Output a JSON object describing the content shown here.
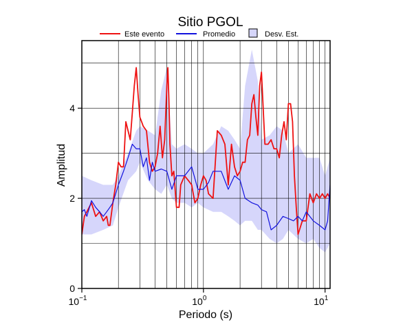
{
  "chart_data": {
    "type": "line",
    "title": "Sitio PGOL",
    "xlabel": "Periodo (s)",
    "ylabel": "Amplitud",
    "x_scale": "log",
    "xlim": [
      0.1,
      11
    ],
    "ylim": [
      0,
      5.5
    ],
    "x_ticks": [
      {
        "value": 0.1,
        "base": "10",
        "exp": "−1"
      },
      {
        "value": 1,
        "base": "10",
        "exp": "0"
      },
      {
        "value": 10,
        "base": "10",
        "exp": "1"
      }
    ],
    "y_ticks": [
      {
        "value": 0,
        "label": "0"
      },
      {
        "value": 2,
        "label": "2"
      },
      {
        "value": 4,
        "label": "4"
      }
    ],
    "grid": "vertical lines at log decades and intermediates, horizontal lines at 1, 2, 3, 4, 5",
    "legend": {
      "placement": "top",
      "items": [
        {
          "label": "Este evento",
          "kind": "line",
          "color": "#ee1111"
        },
        {
          "label": "Promedio",
          "kind": "line",
          "color": "#1111dd"
        },
        {
          "label": "Desv. Est.",
          "kind": "band",
          "color": "#d6d6fb"
        }
      ]
    },
    "band": {
      "name": "Desv. Est.",
      "x": [
        0.1,
        0.12,
        0.15,
        0.18,
        0.2,
        0.24,
        0.28,
        0.3,
        0.35,
        0.4,
        0.45,
        0.5,
        0.55,
        0.6,
        0.7,
        0.8,
        0.9,
        1.0,
        1.2,
        1.4,
        1.6,
        1.8,
        2.0,
        2.2,
        2.5,
        2.8,
        3.0,
        3.5,
        4.0,
        4.5,
        5.0,
        6.0,
        7.0,
        8.0,
        9.0,
        10.0,
        11.0
      ],
      "upper": [
        2.5,
        2.4,
        2.3,
        2.3,
        2.5,
        3.0,
        3.5,
        3.6,
        3.5,
        3.4,
        4.4,
        4.9,
        3.2,
        3.1,
        3.2,
        3.1,
        3.0,
        3.0,
        3.2,
        3.6,
        3.5,
        3.3,
        3.1,
        4.5,
        5.3,
        4.6,
        3.3,
        3.4,
        3.6,
        3.5,
        3.0,
        3.2,
        2.9,
        2.9,
        2.9,
        2.5,
        2.9
      ],
      "lower": [
        1.2,
        1.2,
        1.3,
        1.4,
        1.8,
        2.4,
        2.6,
        2.8,
        2.4,
        2.2,
        2.1,
        2.3,
        2.0,
        1.9,
        1.9,
        1.8,
        1.9,
        1.8,
        1.7,
        1.7,
        1.6,
        1.5,
        1.4,
        1.5,
        1.5,
        1.3,
        1.3,
        1.1,
        1.0,
        1.1,
        1.3,
        1.1,
        1.0,
        1.1,
        0.9,
        0.8,
        1.0
      ]
    },
    "series": [
      {
        "name": "Este evento",
        "color": "#ee1111",
        "x": [
          0.1,
          0.105,
          0.11,
          0.12,
          0.13,
          0.14,
          0.15,
          0.16,
          0.165,
          0.17,
          0.18,
          0.19,
          0.2,
          0.21,
          0.22,
          0.23,
          0.24,
          0.25,
          0.26,
          0.27,
          0.28,
          0.29,
          0.3,
          0.31,
          0.32,
          0.34,
          0.36,
          0.38,
          0.4,
          0.42,
          0.44,
          0.46,
          0.48,
          0.5,
          0.51,
          0.52,
          0.53,
          0.55,
          0.57,
          0.6,
          0.63,
          0.65,
          0.7,
          0.75,
          0.8,
          0.85,
          0.9,
          0.95,
          1.0,
          1.05,
          1.1,
          1.2,
          1.3,
          1.4,
          1.5,
          1.6,
          1.7,
          1.8,
          1.9,
          2.0,
          2.1,
          2.2,
          2.3,
          2.4,
          2.5,
          2.6,
          2.7,
          2.8,
          2.9,
          3.0,
          3.1,
          3.2,
          3.4,
          3.6,
          3.8,
          4.0,
          4.2,
          4.4,
          4.6,
          4.8,
          5.0,
          5.2,
          5.4,
          5.6,
          5.8,
          6.0,
          6.5,
          7.0,
          7.5,
          8.0,
          8.5,
          9.0,
          9.5,
          10.0,
          10.5,
          11.0
        ],
        "y": [
          1.2,
          1.6,
          1.7,
          1.9,
          1.6,
          1.7,
          1.5,
          1.6,
          1.4,
          1.4,
          1.9,
          2.3,
          2.8,
          2.7,
          2.7,
          3.7,
          3.5,
          3.3,
          3.9,
          4.5,
          4.9,
          4.3,
          3.8,
          3.7,
          3.6,
          3.5,
          2.8,
          2.6,
          2.7,
          3.0,
          3.6,
          2.9,
          3.3,
          4.5,
          4.9,
          4.2,
          3.2,
          2.5,
          2.6,
          1.8,
          1.8,
          2.3,
          2.5,
          2.4,
          2.3,
          1.9,
          2.0,
          2.3,
          2.5,
          2.4,
          2.1,
          2.0,
          3.5,
          3.4,
          3.2,
          2.3,
          3.2,
          2.7,
          2.5,
          2.6,
          2.8,
          2.8,
          3.3,
          3.4,
          4.1,
          4.3,
          3.8,
          3.4,
          4.5,
          4.8,
          4.0,
          3.2,
          3.2,
          3.3,
          3.1,
          3.1,
          2.9,
          3.4,
          3.7,
          3.3,
          4.1,
          4.1,
          3.7,
          2.5,
          1.8,
          1.2,
          1.5,
          1.5,
          2.1,
          1.9,
          2.1,
          2.0,
          2.1,
          2.0,
          2.1,
          2.0
        ]
      },
      {
        "name": "Promedio",
        "color": "#1111dd",
        "x": [
          0.1,
          0.105,
          0.11,
          0.12,
          0.13,
          0.14,
          0.15,
          0.16,
          0.17,
          0.18,
          0.2,
          0.22,
          0.24,
          0.26,
          0.28,
          0.3,
          0.32,
          0.34,
          0.36,
          0.38,
          0.4,
          0.45,
          0.5,
          0.55,
          0.6,
          0.7,
          0.8,
          0.9,
          1.0,
          1.1,
          1.2,
          1.4,
          1.6,
          1.8,
          2.0,
          2.2,
          2.5,
          2.8,
          3.0,
          3.3,
          3.6,
          4.0,
          4.5,
          5.0,
          5.5,
          6.0,
          6.5,
          7.0,
          8.0,
          9.0,
          10.0,
          10.5,
          11.0
        ],
        "y": [
          1.7,
          1.75,
          1.6,
          1.95,
          1.8,
          1.7,
          1.6,
          1.7,
          1.8,
          1.9,
          2.3,
          2.6,
          2.9,
          3.2,
          3.1,
          3.1,
          2.7,
          2.9,
          2.4,
          2.8,
          2.6,
          2.65,
          2.6,
          2.2,
          2.5,
          2.5,
          2.7,
          2.2,
          2.2,
          2.35,
          2.6,
          2.6,
          2.2,
          2.5,
          2.4,
          2.0,
          1.9,
          1.85,
          1.75,
          1.7,
          1.3,
          1.4,
          1.6,
          1.55,
          1.5,
          1.6,
          1.5,
          1.7,
          1.5,
          1.4,
          1.3,
          1.5,
          2.3
        ]
      }
    ]
  }
}
